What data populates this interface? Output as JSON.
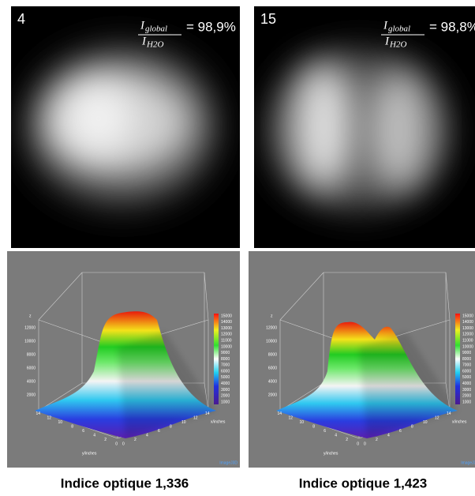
{
  "panels": [
    {
      "label": "4",
      "formula": {
        "numerator": "I",
        "numerator_sub": "global",
        "denominator": "I",
        "denominator_sub": "H2O",
        "result": "= 98,9%"
      },
      "plot": {
        "z_label": "z",
        "z_ticks": [
          2000,
          4000,
          6000,
          8000,
          10000,
          12000
        ],
        "colorbar_ticks": [
          1000,
          2000,
          3000,
          4000,
          5000,
          6000,
          7000,
          8000,
          9000,
          10000,
          11000,
          12000,
          13000,
          14000,
          15000
        ],
        "x_label": "x/inches",
        "y_label": "y/inches",
        "x_ticks": [
          0,
          2,
          4,
          6,
          8,
          10,
          12,
          14
        ],
        "y_ticks": [
          0,
          2,
          4,
          6,
          8,
          10,
          12,
          14
        ],
        "credit": "ImageJ3D"
      },
      "caption": "Indice optique 1,336"
    },
    {
      "label": "15",
      "formula": {
        "numerator": "I",
        "numerator_sub": "global",
        "denominator": "I",
        "denominator_sub": "H2O",
        "result": "= 98,8%"
      },
      "plot": {
        "z_label": "z",
        "z_ticks": [
          2000,
          4000,
          6000,
          8000,
          10000,
          12000
        ],
        "colorbar_ticks": [
          1000,
          2000,
          3000,
          4000,
          5000,
          6000,
          7000,
          8000,
          9000,
          10000,
          11000,
          12000,
          13000,
          14000,
          15000
        ],
        "x_label": "x/inches",
        "y_label": "y/inches",
        "x_ticks": [
          0,
          2,
          4,
          6,
          8,
          10,
          12,
          14
        ],
        "y_ticks": [
          0,
          2,
          4,
          6,
          8,
          10,
          12,
          14
        ],
        "credit": "ImageJ3D"
      },
      "caption": "Indice optique 1,423"
    }
  ]
}
